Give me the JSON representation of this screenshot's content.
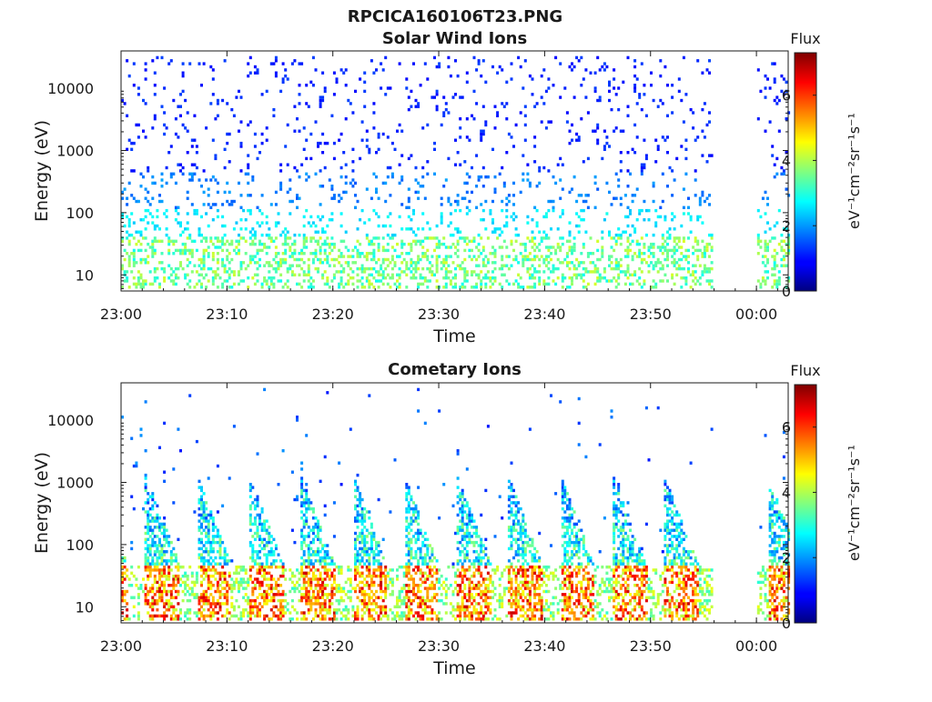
{
  "figure_title": "RPCICA160106T23.PNG",
  "chart_data": [
    {
      "type": "heatmap",
      "title": "Solar Wind Ions",
      "xlabel": "Time",
      "ylabel": "Energy (eV)",
      "y_scale": "log",
      "ylim": [
        5.5,
        40000
      ],
      "xlim": [
        "23:00",
        "00:03"
      ],
      "x_ticks": [
        "23:00",
        "23:10",
        "23:20",
        "23:30",
        "23:40",
        "23:50",
        "00:00"
      ],
      "y_ticks": [
        "10",
        "100",
        "1000",
        "10000"
      ],
      "colorbar": {
        "title": "Flux",
        "label": "eV⁻¹cm⁻²sr⁻¹s⁻¹",
        "ticks": [
          "0",
          "2",
          "4",
          "6"
        ],
        "range": [
          0,
          7.3
        ]
      },
      "data_gap": [
        "23:56",
        "00:00"
      ],
      "pattern": "sparse"
    },
    {
      "type": "heatmap",
      "title": "Cometary Ions",
      "xlabel": "Time",
      "ylabel": "Energy (eV)",
      "y_scale": "log",
      "ylim": [
        5.5,
        40000
      ],
      "xlim": [
        "23:00",
        "00:03"
      ],
      "x_ticks": [
        "23:00",
        "23:10",
        "23:20",
        "23:30",
        "23:40",
        "23:50",
        "00:00"
      ],
      "y_ticks": [
        "10",
        "100",
        "1000",
        "10000"
      ],
      "colorbar": {
        "title": "Flux",
        "label": "eV⁻¹cm⁻²sr⁻¹s⁻¹",
        "ticks": [
          "0",
          "2",
          "4",
          "6"
        ],
        "range": [
          0,
          7.3
        ]
      },
      "data_gap": [
        "23:56",
        "00:00"
      ],
      "pattern": "periodic-bursts"
    }
  ]
}
